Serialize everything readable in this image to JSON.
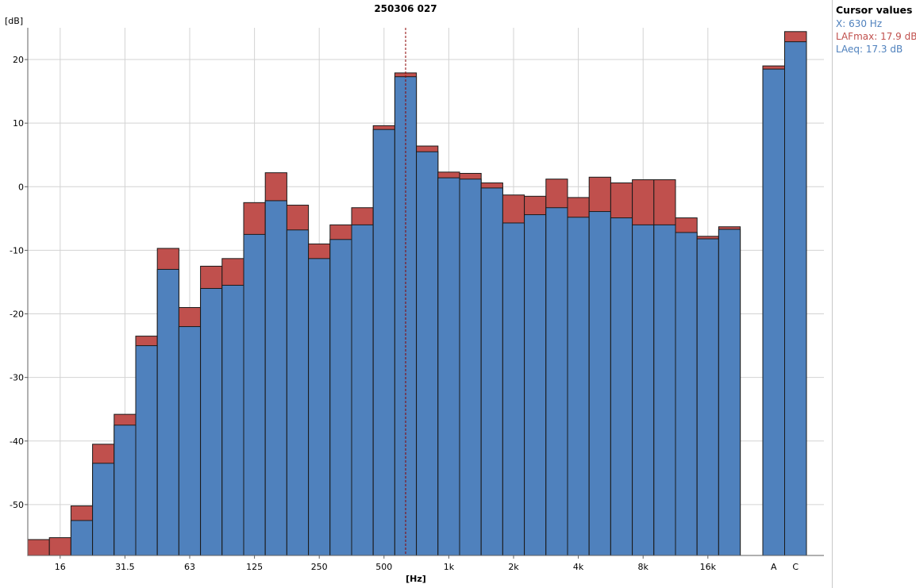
{
  "chart_data": {
    "type": "bar",
    "title": "250306 027",
    "ylabel": "[dB]",
    "xlabel": "[Hz]",
    "ylim": [
      -58,
      25
    ],
    "yticks": [
      20,
      10,
      0,
      -10,
      -20,
      -30,
      -40,
      -50
    ],
    "grid": true,
    "cursor_category": "630",
    "categories": [
      "12.5",
      "16",
      "20",
      "25",
      "31.5",
      "40",
      "50",
      "63",
      "80",
      "100",
      "125",
      "160",
      "200",
      "250",
      "315",
      "400",
      "500",
      "630",
      "800",
      "1k",
      "1.25k",
      "1.6k",
      "2k",
      "2.5k",
      "3.15k",
      "4k",
      "5k",
      "6.3k",
      "8k",
      "10k",
      "12.5k",
      "16k",
      "20k"
    ],
    "x_tick_labels": [
      "16",
      "31.5",
      "63",
      "125",
      "250",
      "500",
      "1k",
      "2k",
      "4k",
      "8k",
      "16k"
    ],
    "series": [
      {
        "name": "LAeq",
        "color": "#4f81bd",
        "values": [
          null,
          null,
          -52.5,
          -43.5,
          -37.5,
          -25,
          -13,
          -22,
          -16,
          -15.5,
          -7.5,
          -2.2,
          -6.8,
          -11.3,
          -8.3,
          -6,
          9,
          17.3,
          5.5,
          1.4,
          1.2,
          -0.2,
          -5.7,
          -4.4,
          -3.3,
          -4.8,
          -3.9,
          -4.9,
          -6,
          -6,
          -7.2,
          -8.2,
          -6.7
        ]
      },
      {
        "name": "LAFmax",
        "color": "#c0504d",
        "values": [
          -55.5,
          -55.2,
          -50.2,
          -40.5,
          -35.8,
          -23.5,
          -9.7,
          -19,
          -12.5,
          -11.3,
          -2.5,
          2.2,
          -2.9,
          -9,
          -6,
          -3.3,
          9.6,
          17.9,
          6.4,
          2.3,
          2.1,
          0.6,
          -1.3,
          -1.5,
          1.2,
          -1.7,
          1.5,
          0.6,
          1.1,
          1.1,
          -4.9,
          -7.8,
          -6.3
        ]
      }
    ],
    "totals": {
      "categories": [
        "A",
        "C"
      ],
      "LAeq": [
        18.5,
        22.8
      ],
      "LAFmax": [
        19.0,
        24.4
      ]
    }
  },
  "cursor": {
    "title": "Cursor values",
    "x": "X: 630 Hz",
    "lafmax": "LAFmax: 17.9 dB",
    "laeq": "LAeq: 17.3 dB",
    "colors": {
      "x": "#4f81bd",
      "lafmax": "#c0504d",
      "laeq": "#4f81bd"
    }
  }
}
